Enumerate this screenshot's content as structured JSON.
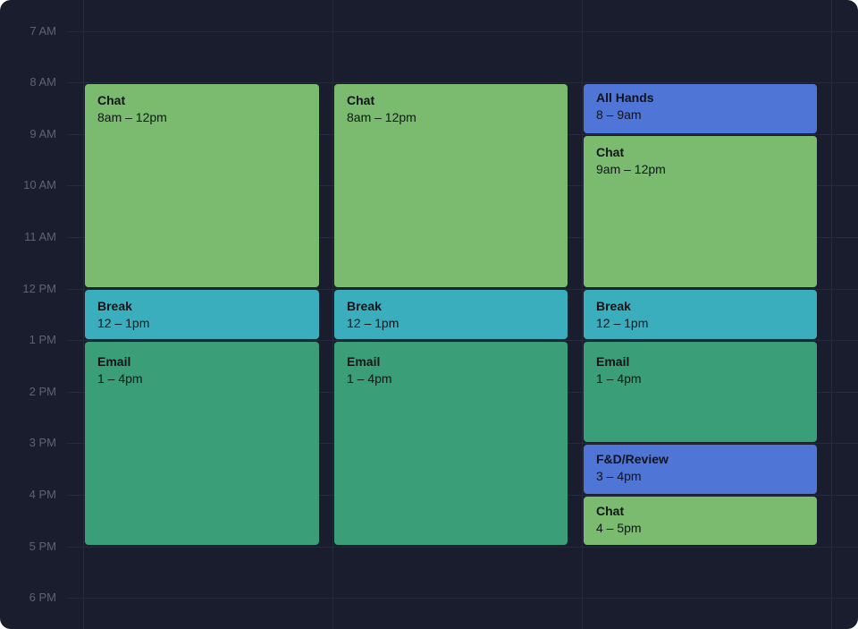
{
  "hours": [
    "7 AM",
    "8 AM",
    "9 AM",
    "10 AM",
    "11 AM",
    "12 PM",
    "1 PM",
    "2 PM",
    "3 PM",
    "4 PM",
    "5 PM",
    "6 PM"
  ],
  "columns": [
    {
      "events": [
        {
          "title": "Chat",
          "time": "8am – 12pm"
        },
        {
          "title": "Break",
          "time": "12 – 1pm"
        },
        {
          "title": "Email",
          "time": "1 – 4pm"
        }
      ]
    },
    {
      "events": [
        {
          "title": "Chat",
          "time": "8am – 12pm"
        },
        {
          "title": "Break",
          "time": "12 – 1pm"
        },
        {
          "title": "Email",
          "time": "1 – 4pm"
        }
      ]
    },
    {
      "events": [
        {
          "title": "All Hands",
          "time": "8 – 9am"
        },
        {
          "title": "Chat",
          "time": "9am – 12pm"
        },
        {
          "title": "Break",
          "time": "12 – 1pm"
        },
        {
          "title": "Email",
          "time": "1 – 4pm"
        },
        {
          "title": "F&D/Review",
          "time": "3 – 4pm"
        },
        {
          "title": "Chat",
          "time": "4 – 5pm"
        }
      ]
    }
  ]
}
